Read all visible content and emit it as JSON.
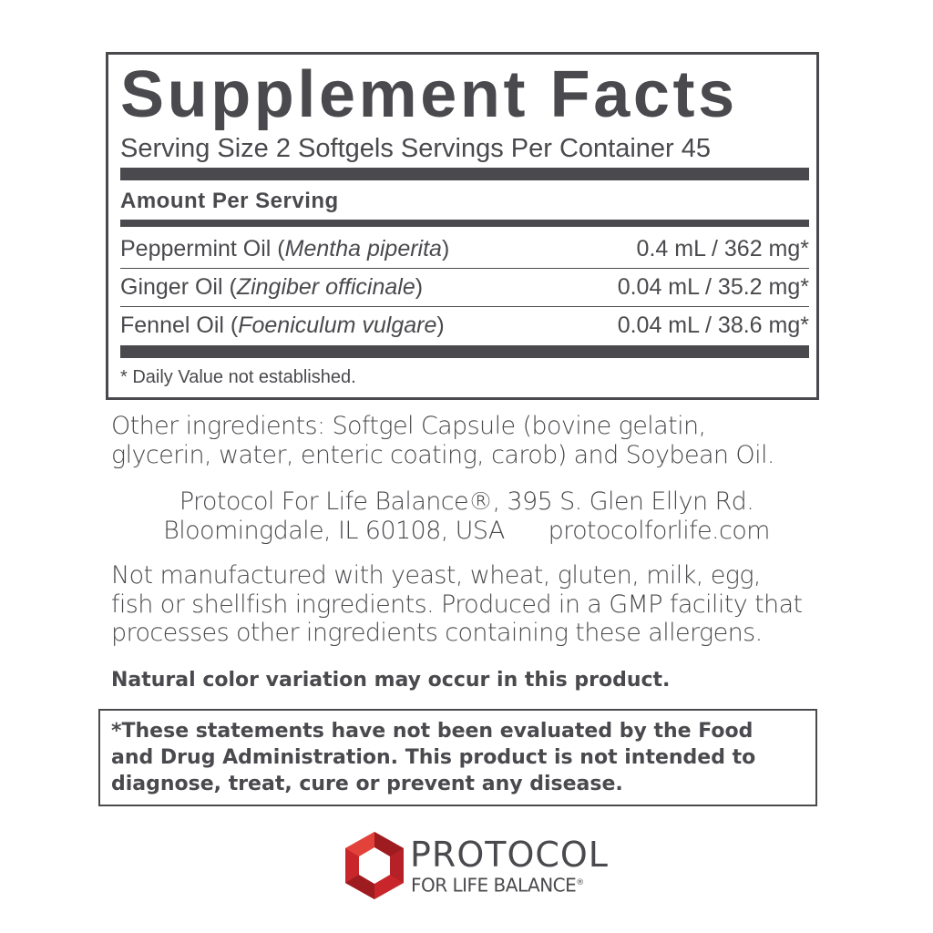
{
  "facts": {
    "title": "Supplement Facts",
    "serving": "Serving Size 2 Softgels  Servings Per Container 45",
    "amount_header": "Amount Per Serving",
    "rows": [
      {
        "name": "Peppermint Oil (",
        "latin": "Mentha piperita",
        "close": ")",
        "amount": "0.4 mL / 362 mg*"
      },
      {
        "name": "Ginger Oil (",
        "latin": "Zingiber officinale",
        "close": ")",
        "amount": "0.04 mL / 35.2 mg*"
      },
      {
        "name": "Fennel Oil (",
        "latin": "Foeniculum vulgare",
        "close": ")",
        "amount": "0.04 mL / 38.6 mg*"
      }
    ],
    "footnote": "* Daily Value not established."
  },
  "other_ingredients": [
    "Other ingredients: Softgel Capsule (bovine gelatin,",
    "glycerin, water, enteric coating, carob) and Soybean Oil."
  ],
  "address": [
    "Protocol For Life Balance®, 395 S. Glen Ellyn Rd.",
    "Bloomingdale, IL 60108, USA      protocolforlife.com"
  ],
  "allergens": [
    "Not manufactured with yeast, wheat, gluten, milk, egg,",
    "fish or shellfish ingredients. Produced in a GMP facility that",
    "processes other ingredients containing these allergens."
  ],
  "color_note": "Natural color variation may occur in this product.",
  "disclaimer": [
    "*These statements have not been evaluated by the Food",
    "and Drug Administration. This product is not intended to",
    "diagnose, treat, cure or prevent any disease."
  ],
  "logo": {
    "line1": "PROTOCOL",
    "line2": "FOR LIFE BALANCE",
    "reg": "®",
    "colors": [
      "#c8262b",
      "#9e1b1f",
      "#e2423a"
    ]
  },
  "colors": {
    "text": "#4a4a4e"
  }
}
